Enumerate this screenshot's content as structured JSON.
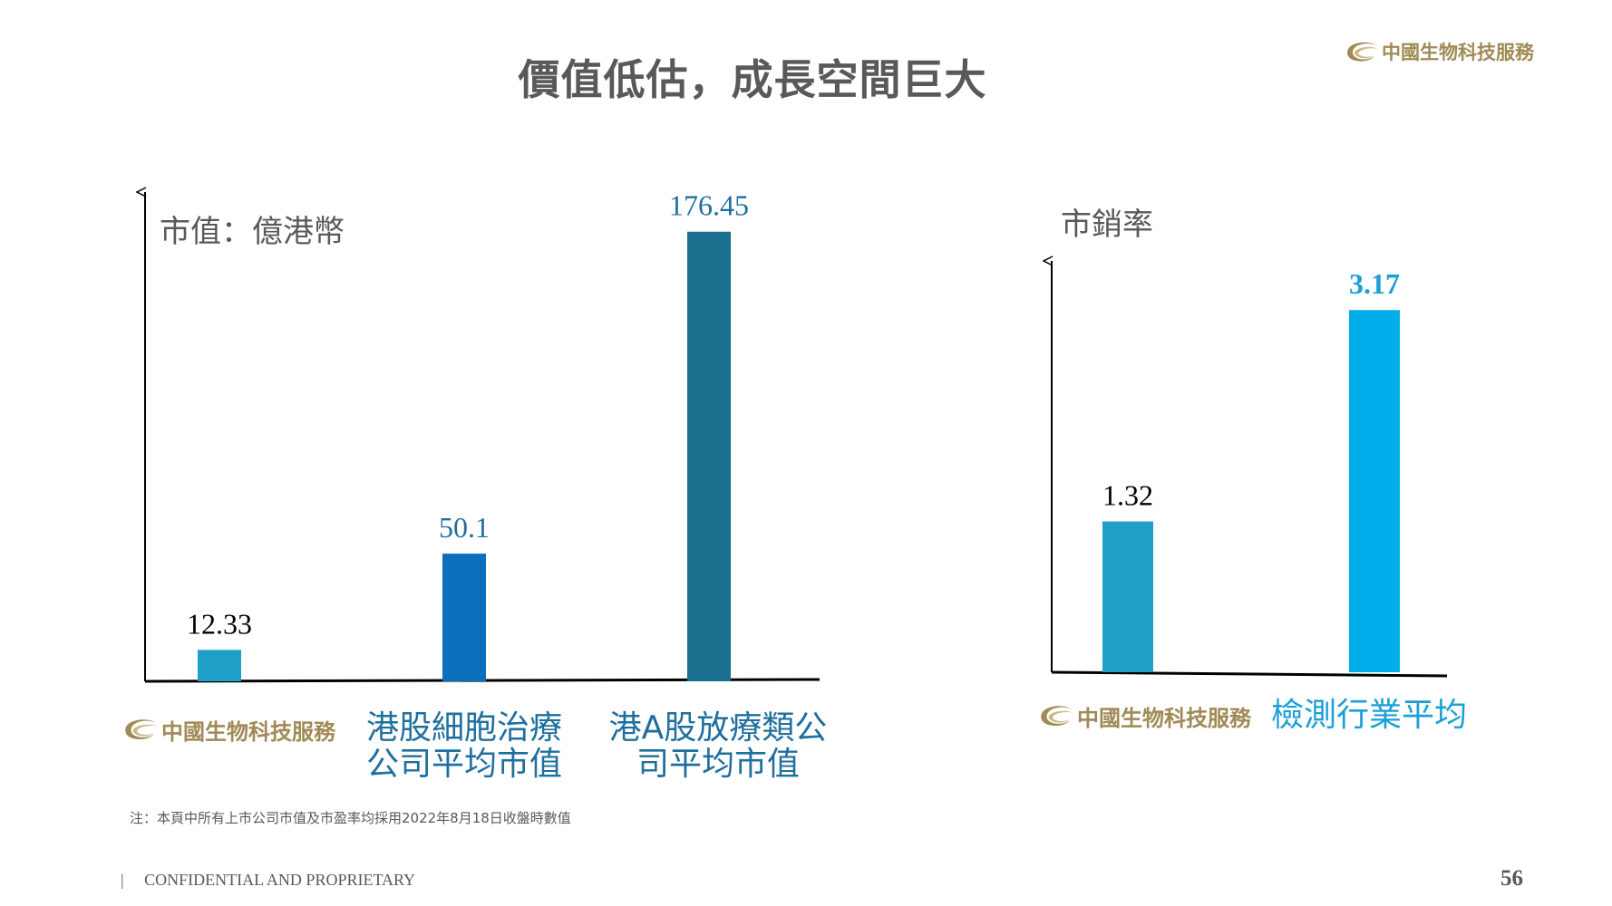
{
  "header": {
    "title": "價值低估，成長空間巨大",
    "logo_text": "中國生物科技服務",
    "logo_icon": "globe-swirl-icon"
  },
  "colors": {
    "axis": "#000000",
    "bar_light_teal": "#1fa0c6",
    "bar_blue": "#0b6fbe",
    "bar_dark_teal": "#1a6e8e",
    "bar_sky": "#00aeeb",
    "label_blue": "#1f6f9e",
    "logo_gold": "#a08a55"
  },
  "chart_data": [
    {
      "type": "bar",
      "ylabel": "市值：億港幣",
      "categories": [
        "中國生物科技服務",
        "港股細胞治療公司平均市值",
        "港A股放療類公司平均市值"
      ],
      "category_lines": [
        [
          "中國生物科技服務"
        ],
        [
          "港股細胞治療",
          "公司平均市值"
        ],
        [
          "港A股放療類公",
          "司平均市值"
        ]
      ],
      "values": [
        12.33,
        50.1,
        176.45
      ],
      "value_labels": [
        "12.33",
        "50.1",
        "176.45"
      ],
      "colors": [
        "#1fa0c6",
        "#0b6fbe",
        "#1a6e8e"
      ],
      "value_label_colors": [
        "#000000",
        "#1f6f9e",
        "#1f6f9e"
      ],
      "ylim": [
        0,
        192
      ],
      "grid": false,
      "legend": "none"
    },
    {
      "type": "bar",
      "ylabel": "市銷率",
      "categories": [
        "中國生物科技服務",
        "檢測行業平均"
      ],
      "category_lines": [
        [
          "中國生物科技服務"
        ],
        [
          "檢測行業平均"
        ]
      ],
      "values": [
        1.32,
        3.17
      ],
      "value_labels": [
        "1.32",
        "3.17"
      ],
      "colors": [
        "#1fa0c6",
        "#00aeeb"
      ],
      "value_label_colors": [
        "#000000",
        "#1a9fd6"
      ],
      "ylim": [
        0,
        3.6
      ],
      "grid": false,
      "legend": "none"
    }
  ],
  "footer": {
    "note": "注：本頁中所有上市公司市值及市盈率均採用2022年8月18日收盤時數值",
    "divider": "|",
    "confidential": "CONFIDENTIAL AND PROPRIETARY",
    "page_number": "56"
  }
}
